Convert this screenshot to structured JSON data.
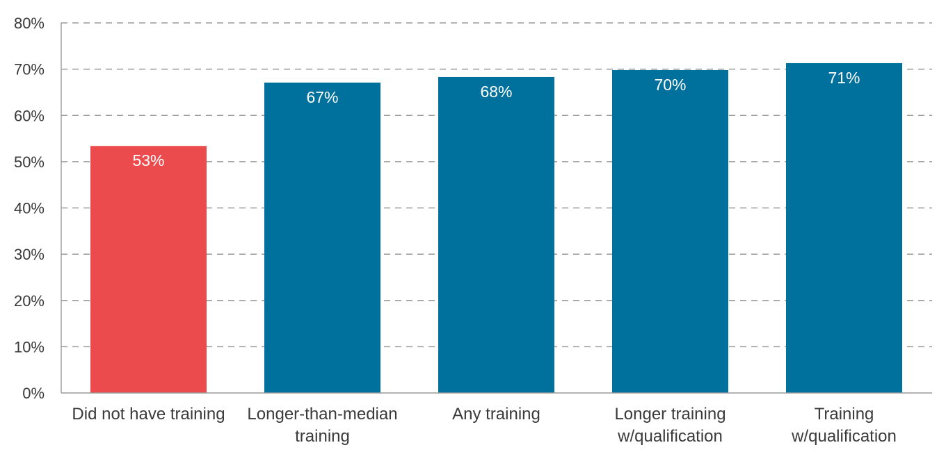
{
  "chart_data": {
    "type": "bar",
    "categories": [
      [
        "Did not have training"
      ],
      [
        "Longer-than-median",
        "training"
      ],
      [
        "Any training"
      ],
      [
        "Longer training",
        "w/qualification"
      ],
      [
        "Training",
        "w/qualification"
      ]
    ],
    "values": [
      53.4,
      67.1,
      68.3,
      69.8,
      71.3
    ],
    "data_labels": [
      "53%",
      "67%",
      "68%",
      "70%",
      "71%"
    ],
    "bar_colors": [
      "#ec4b4e",
      "#00719c",
      "#00719c",
      "#00719c",
      "#00719c"
    ],
    "ylim": [
      0,
      80
    ],
    "yticks": [
      0,
      10,
      20,
      30,
      40,
      50,
      60,
      70,
      80
    ],
    "ytick_labels": [
      "0%",
      "10%",
      "20%",
      "30%",
      "40%",
      "50%",
      "60%",
      "70%",
      "80%"
    ],
    "grid": true,
    "grid_style": "dashed",
    "title": "",
    "xlabel": "",
    "ylabel": ""
  }
}
